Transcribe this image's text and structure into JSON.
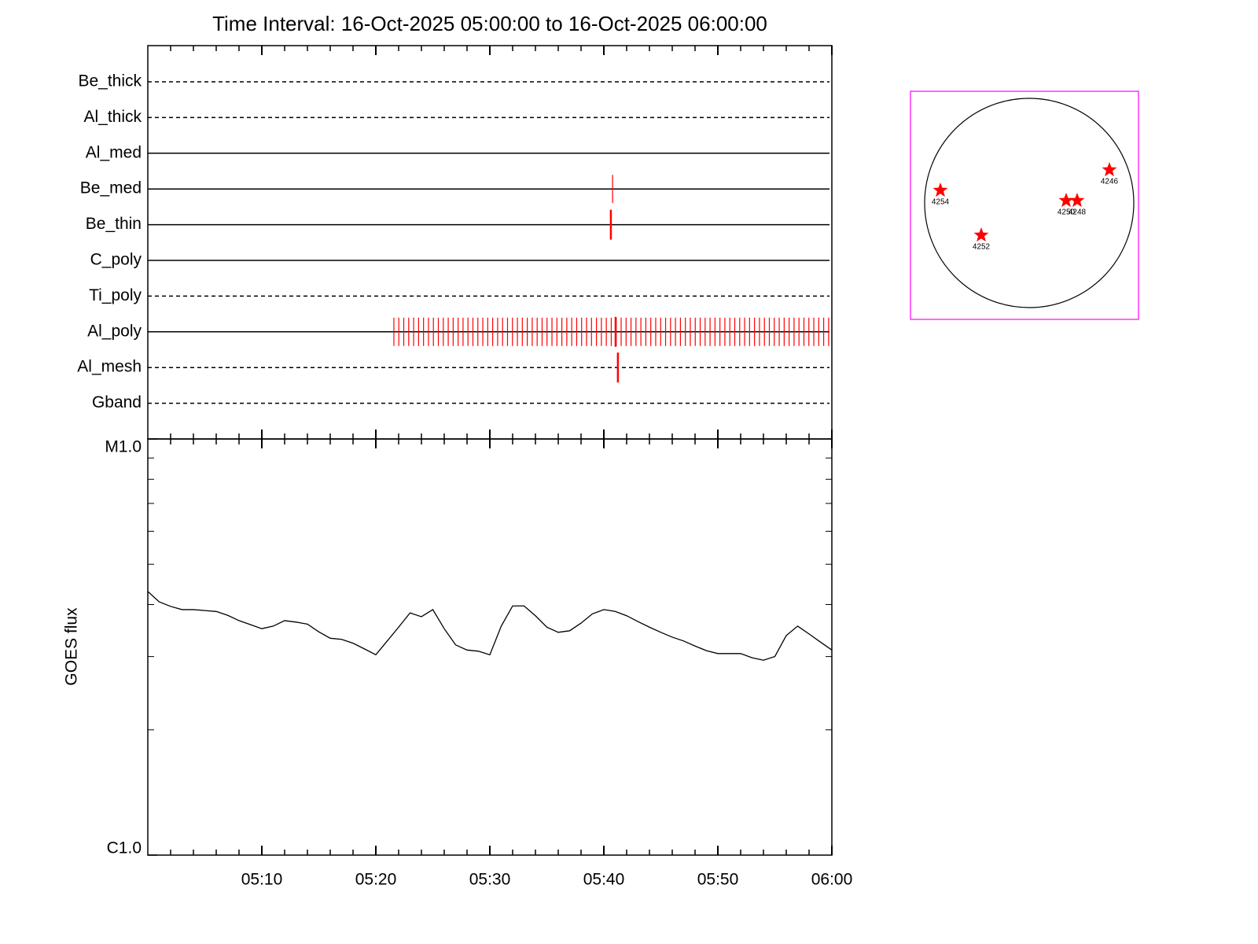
{
  "chart_data": [
    {
      "type": "timeline",
      "title": "Time Interval: 16-Oct-2025 05:00:00 to 16-Oct-2025 06:00:00",
      "color": "#ff0000",
      "filters": [
        {
          "name": "Be_thick",
          "style": "dashed",
          "exposures": [],
          "long_exposures": []
        },
        {
          "name": "Al_thick",
          "style": "dashed",
          "exposures": [],
          "long_exposures": []
        },
        {
          "name": "Al_med",
          "style": "solid",
          "exposures": [],
          "long_exposures": []
        },
        {
          "name": "Be_med",
          "style": "solid",
          "exposures": [
            "05:40:46"
          ],
          "long_exposures": []
        },
        {
          "name": "Be_thin",
          "style": "solid",
          "exposures": [],
          "long_exposures": [
            "05:40:37"
          ]
        },
        {
          "name": "C_poly",
          "style": "solid",
          "exposures": [],
          "long_exposures": []
        },
        {
          "name": "Ti_poly",
          "style": "dashed",
          "exposures": [],
          "long_exposures": []
        },
        {
          "name": "Al_poly",
          "style": "solid",
          "exposures": [
            "05:21:35",
            "05:22:01",
            "05:22:27",
            "05:22:53",
            "05:23:19",
            "05:23:45",
            "05:24:11",
            "05:24:37",
            "05:25:03",
            "05:25:29",
            "05:25:55",
            "05:26:21",
            "05:26:47",
            "05:27:13",
            "05:27:39",
            "05:28:05",
            "05:28:31",
            "05:28:57",
            "05:29:23",
            "05:29:49",
            "05:30:15",
            "05:30:41",
            "05:31:07",
            "05:31:33",
            "05:31:59",
            "05:32:25",
            "05:32:51",
            "05:33:17",
            "05:33:43",
            "05:34:09",
            "05:34:35",
            "05:35:01",
            "05:35:27",
            "05:35:53",
            "05:36:19",
            "05:36:45",
            "05:37:11",
            "05:37:37",
            "05:38:03",
            "05:38:29",
            "05:38:55",
            "05:39:21",
            "05:39:47",
            "05:40:13",
            "05:40:39",
            "05:41:05",
            "05:41:31",
            "05:41:57",
            "05:42:23",
            "05:42:49",
            "05:43:15",
            "05:43:41",
            "05:44:07",
            "05:44:33",
            "05:44:59",
            "05:45:25",
            "05:45:51",
            "05:46:17",
            "05:46:43",
            "05:47:09",
            "05:47:35",
            "05:48:01",
            "05:48:27",
            "05:48:53",
            "05:49:19",
            "05:49:45",
            "05:50:11",
            "05:50:37",
            "05:51:03",
            "05:51:29",
            "05:51:55",
            "05:52:21",
            "05:52:47",
            "05:53:13",
            "05:53:39",
            "05:54:05",
            "05:54:31",
            "05:54:57",
            "05:55:23",
            "05:55:49",
            "05:56:15",
            "05:56:41",
            "05:57:07",
            "05:57:33",
            "05:57:59",
            "05:58:25",
            "05:58:51",
            "05:59:17",
            "05:59:43"
          ],
          "long_exposures": [
            "05:41:02"
          ]
        },
        {
          "name": "Al_mesh",
          "style": "dashed",
          "exposures": [],
          "long_exposures": [
            "05:41:14"
          ]
        },
        {
          "name": "Gband",
          "style": "dashed",
          "exposures": [],
          "long_exposures": []
        }
      ]
    },
    {
      "type": "line",
      "ylabel": "GOES flux",
      "color": "#000000",
      "log_y": true,
      "x": [
        "05:00",
        "05:01",
        "05:02",
        "05:03",
        "05:04",
        "05:05",
        "05:06",
        "05:07",
        "05:08",
        "05:09",
        "05:10",
        "05:11",
        "05:12",
        "05:13",
        "05:14",
        "05:15",
        "05:16",
        "05:17",
        "05:18",
        "05:19",
        "05:20",
        "05:21",
        "05:22",
        "05:23",
        "05:24",
        "05:25",
        "05:26",
        "05:27",
        "05:28",
        "05:29",
        "05:30",
        "05:31",
        "05:32",
        "05:33",
        "05:34",
        "05:35",
        "05:36",
        "05:37",
        "05:38",
        "05:39",
        "05:40",
        "05:41",
        "05:42",
        "05:43",
        "05:44",
        "05:45",
        "05:46",
        "05:47",
        "05:48",
        "05:49",
        "05:50",
        "05:51",
        "05:52",
        "05:53",
        "05:54",
        "05:55",
        "05:56",
        "05:57",
        "05:58",
        "05:59",
        "06:00"
      ],
      "values": [
        4.3e-06,
        4.06e-06,
        3.96e-06,
        3.89e-06,
        3.89e-06,
        3.87e-06,
        3.85e-06,
        3.77e-06,
        3.66e-06,
        3.58e-06,
        3.5e-06,
        3.55e-06,
        3.66e-06,
        3.63e-06,
        3.59e-06,
        3.44e-06,
        3.32e-06,
        3.3e-06,
        3.23e-06,
        3.13e-06,
        3.03e-06,
        3.27e-06,
        3.53e-06,
        3.82e-06,
        3.74e-06,
        3.89e-06,
        3.5e-06,
        3.2e-06,
        3.11e-06,
        3.09e-06,
        3.03e-06,
        3.55e-06,
        3.97e-06,
        3.97e-06,
        3.76e-06,
        3.53e-06,
        3.43e-06,
        3.46e-06,
        3.61e-06,
        3.8e-06,
        3.89e-06,
        3.85e-06,
        3.76e-06,
        3.64e-06,
        3.53e-06,
        3.43e-06,
        3.34e-06,
        3.27e-06,
        3.18e-06,
        3.1e-06,
        3.05e-06,
        3.05e-06,
        3.05e-06,
        2.98e-06,
        2.94e-06,
        3e-06,
        3.37e-06,
        3.55e-06,
        3.4e-06,
        3.25e-06,
        3.11e-06
      ],
      "xlim": [
        "05:00",
        "06:00"
      ],
      "xticks": [
        "05:10",
        "05:20",
        "05:30",
        "05:40",
        "05:50",
        "06:00"
      ],
      "xminorticks": [
        "05:02",
        "05:04",
        "05:06",
        "05:08",
        "05:12",
        "05:14",
        "05:16",
        "05:18",
        "05:22",
        "05:24",
        "05:26",
        "05:28",
        "05:32",
        "05:34",
        "05:36",
        "05:38",
        "05:42",
        "05:44",
        "05:46",
        "05:48",
        "05:52",
        "05:54",
        "05:56",
        "05:58"
      ],
      "ylim": [
        1e-06,
        1e-05
      ],
      "yticks": [
        {
          "value": 1e-06,
          "label": "C1.0"
        },
        {
          "value": 1e-05,
          "label": "M1.0"
        }
      ],
      "yminorticks": [
        2e-06,
        3e-06,
        4e-06,
        5e-06,
        6e-06,
        7e-06,
        8e-06,
        9e-06
      ]
    },
    {
      "type": "map",
      "color": "#ff0000",
      "frame_color": "#ff00ff",
      "regions": [
        "4254",
        "4252",
        "4246",
        "4250",
        "4248"
      ]
    }
  ]
}
